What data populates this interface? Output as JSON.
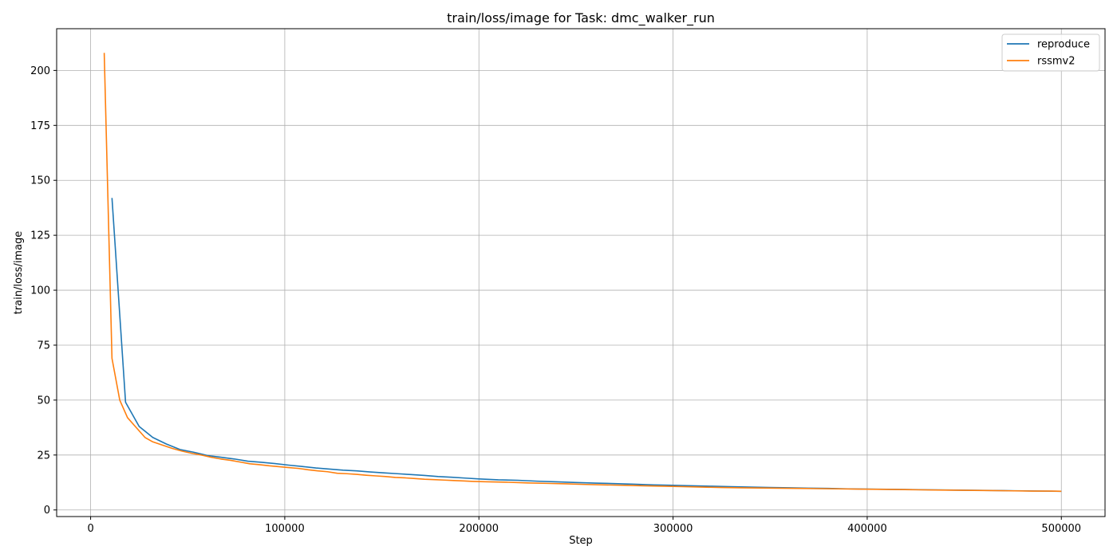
{
  "chart_data": {
    "type": "line",
    "title": "train/loss/image for Task: dmc_walker_run",
    "xlabel": "Step",
    "ylabel": "train/loss/image",
    "xlim": [
      -17500,
      522500
    ],
    "ylim": [
      -3,
      219
    ],
    "xticks": [
      0,
      100000,
      200000,
      300000,
      400000,
      500000
    ],
    "yticks": [
      0,
      25,
      50,
      75,
      100,
      125,
      150,
      175,
      200
    ],
    "grid": true,
    "legend_position": "top-right",
    "series": [
      {
        "name": "reproduce",
        "color": "#1f77b4",
        "x": [
          11000,
          18000,
          25000,
          32000,
          39000,
          46000,
          53000,
          60000,
          67000,
          74000,
          81000,
          88000,
          95000,
          102000,
          109000,
          116000,
          123000,
          130000,
          137000,
          144000,
          151000,
          158000,
          165000,
          172000,
          179000,
          186000,
          193000,
          200000,
          210000,
          220000,
          230000,
          240000,
          250000,
          260000,
          270000,
          280000,
          290000,
          300000,
          310000,
          320000,
          330000,
          340000,
          350000,
          360000,
          370000,
          380000,
          390000,
          400000,
          410000,
          420000,
          430000,
          440000,
          450000,
          460000,
          470000,
          480000,
          490000,
          500000
        ],
        "y": [
          142,
          49,
          38,
          33,
          30,
          27.5,
          26.3,
          24.8,
          24,
          23.2,
          22.2,
          21.7,
          21.1,
          20.4,
          19.8,
          19.1,
          18.6,
          18.1,
          17.8,
          17.3,
          16.9,
          16.5,
          16.1,
          15.7,
          15.2,
          14.9,
          14.5,
          14.1,
          13.7,
          13.5,
          13.1,
          12.8,
          12.5,
          12.2,
          12,
          11.7,
          11.4,
          11.2,
          11,
          10.8,
          10.6,
          10.4,
          10.2,
          10.1,
          9.9,
          9.8,
          9.6,
          9.5,
          9.4,
          9.3,
          9.2,
          9.1,
          9,
          8.9,
          8.8,
          8.7,
          8.6,
          8.5
        ]
      },
      {
        "name": "rssmv2",
        "color": "#ff7f0e",
        "x": [
          7000,
          11000,
          15000,
          19000,
          23000,
          28000,
          32000,
          37000,
          42000,
          47000,
          52000,
          57000,
          62000,
          67000,
          72000,
          77000,
          82000,
          87000,
          92000,
          97000,
          102000,
          107000,
          112000,
          117000,
          122000,
          127000,
          132000,
          137000,
          142000,
          147000,
          152000,
          157000,
          162000,
          167000,
          172000,
          177000,
          182000,
          187000,
          192000,
          197000,
          205000,
          215000,
          225000,
          235000,
          245000,
          255000,
          265000,
          275000,
          285000,
          295000,
          305000,
          315000,
          325000,
          335000,
          345000,
          355000,
          365000,
          375000,
          385000,
          395000,
          405000,
          415000,
          425000,
          435000,
          445000,
          455000,
          465000,
          475000,
          485000,
          495000,
          500000
        ],
        "y": [
          208,
          69,
          50,
          42,
          38,
          33,
          31,
          29.5,
          28,
          26.8,
          25.8,
          25,
          24,
          23.2,
          22.6,
          21.8,
          21,
          20.6,
          20.1,
          19.7,
          19.3,
          18.9,
          18.3,
          17.8,
          17.4,
          16.7,
          16.5,
          16.2,
          15.8,
          15.5,
          15.2,
          14.8,
          14.6,
          14.3,
          14,
          13.8,
          13.6,
          13.4,
          13.2,
          13,
          12.8,
          12.6,
          12.3,
          12.1,
          11.9,
          11.6,
          11.4,
          11.2,
          11,
          10.8,
          10.6,
          10.4,
          10.2,
          10.1,
          10,
          9.9,
          9.8,
          9.7,
          9.6,
          9.5,
          9.4,
          9.3,
          9.2,
          9.1,
          9,
          8.9,
          8.8,
          8.7,
          8.6,
          8.6,
          8.5
        ]
      }
    ]
  }
}
